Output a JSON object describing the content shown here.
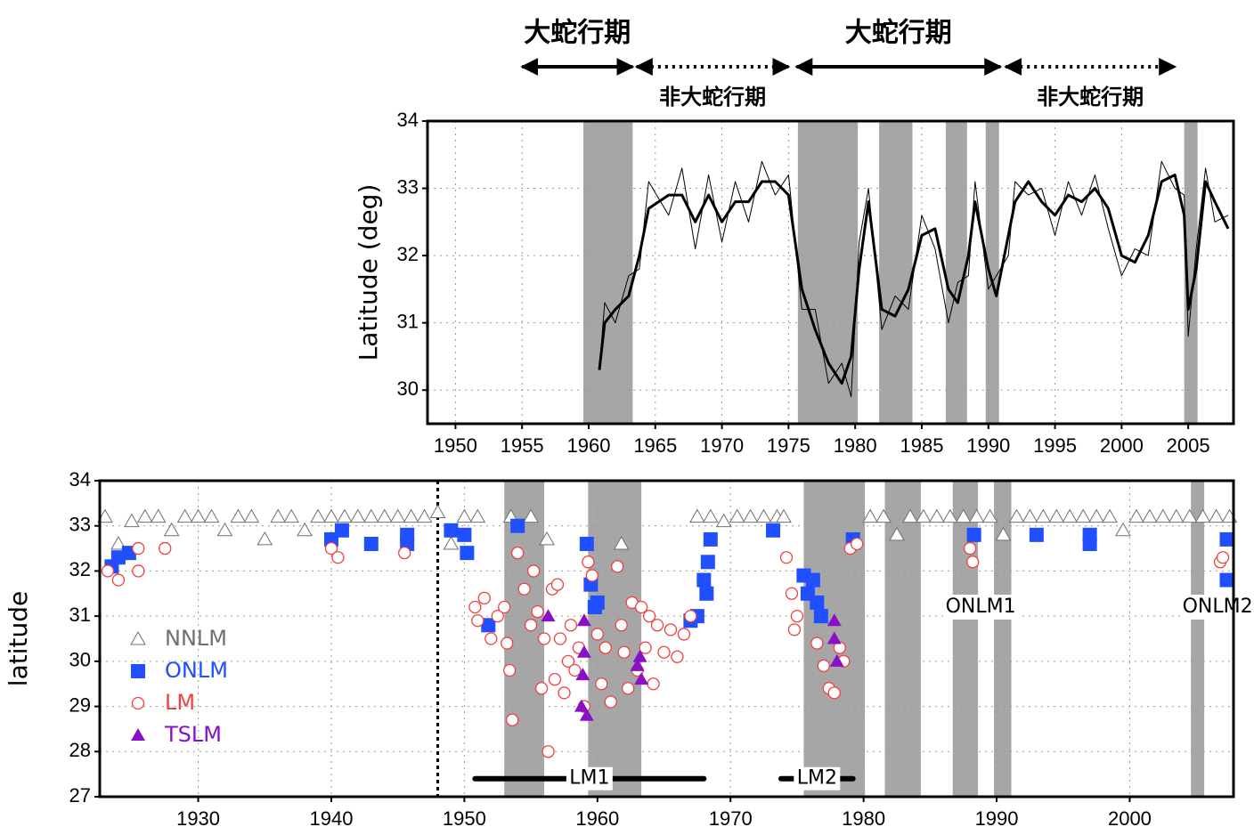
{
  "chart_data": [
    {
      "type": "line",
      "ylabel": "Latitude (deg)",
      "xlim": [
        1947.9,
        2008.4
      ],
      "ylim": [
        29.5,
        34
      ],
      "xticks": [
        1950,
        1955,
        1960,
        1965,
        1970,
        1975,
        1980,
        1985,
        1990,
        1995,
        2000,
        2005
      ],
      "yticks": [
        30,
        31,
        32,
        33,
        34
      ],
      "grid": true,
      "shading": [
        [
          1959.6,
          1963.3
        ],
        [
          1975.7,
          1980.2
        ],
        [
          1981.8,
          1984.3
        ],
        [
          1986.8,
          1988.4
        ],
        [
          1989.8,
          1990.8
        ],
        [
          2004.7,
          2005.7
        ]
      ],
      "shade_color": "#a6a6a6",
      "periods": [
        {
          "label": "大蛇行期",
          "start": 1955,
          "end": 1963.3,
          "style": "solid"
        },
        {
          "label": "非大蛇行期",
          "start": 1963.6,
          "end": 1975,
          "style": "dotted"
        },
        {
          "label": "大蛇行期",
          "start": 1975.6,
          "end": 1990.9,
          "style": "solid"
        },
        {
          "label": "非大蛇行期",
          "start": 1991.3,
          "end": 2004,
          "style": "dotted"
        }
      ],
      "series": [
        {
          "color": "#000000",
          "width": 1,
          "x": [
            1960.8,
            1961.2,
            1962,
            1963,
            1963.8,
            1964.5,
            1966,
            1967,
            1968,
            1969,
            1970,
            1971,
            1972,
            1973,
            1974,
            1975,
            1976,
            1977,
            1978,
            1979,
            1979.7,
            1980.3,
            1981,
            1982,
            1983,
            1984,
            1985,
            1986,
            1987,
            1987.7,
            1988.5,
            1989,
            1990,
            1990.6,
            1991.5,
            1992,
            1993,
            1994,
            1995,
            1996,
            1997,
            1998,
            1999,
            2000,
            2001,
            2002,
            2003,
            2004,
            2004.7,
            2005,
            2005.6,
            2006.3,
            2007,
            2008
          ],
          "values": [
            30.3,
            31.3,
            31.0,
            31.7,
            31.8,
            33.1,
            32.6,
            33.3,
            32.1,
            33.2,
            32.2,
            33.1,
            32.5,
            33.4,
            32.9,
            33.2,
            31.2,
            31.2,
            30.1,
            30.4,
            29.9,
            32.2,
            33.0,
            30.9,
            31.4,
            31.2,
            32.6,
            32.1,
            31.0,
            31.6,
            31.7,
            33.1,
            31.5,
            31.7,
            32.0,
            33.1,
            32.9,
            33.0,
            32.3,
            33.1,
            32.6,
            33.2,
            32.4,
            31.7,
            32.1,
            32.0,
            33.4,
            33.0,
            32.9,
            30.8,
            32.1,
            33.3,
            32.5,
            32.6
          ]
        },
        {
          "color": "#000000",
          "width": 3,
          "x": [
            1960.8,
            1961.2,
            1962,
            1963,
            1963.8,
            1964.5,
            1966,
            1967,
            1968,
            1969,
            1970,
            1971,
            1972,
            1973,
            1974,
            1975,
            1976,
            1977,
            1978,
            1979,
            1979.7,
            1980.3,
            1981,
            1982,
            1983,
            1984,
            1985,
            1986,
            1987,
            1987.7,
            1988.5,
            1989,
            1990,
            1990.6,
            1991.5,
            1992,
            1993,
            1994,
            1995,
            1996,
            1997,
            1998,
            1999,
            2000,
            2001,
            2002,
            2003,
            2004,
            2004.7,
            2005,
            2005.6,
            2006.3,
            2007,
            2008
          ],
          "values": [
            30.3,
            31.0,
            31.2,
            31.4,
            32.0,
            32.7,
            32.9,
            32.9,
            32.5,
            32.9,
            32.5,
            32.8,
            32.8,
            33.1,
            33.1,
            32.9,
            31.5,
            30.9,
            30.4,
            30.1,
            30.5,
            31.8,
            32.8,
            31.2,
            31.1,
            31.5,
            32.3,
            32.4,
            31.5,
            31.3,
            32.0,
            32.8,
            31.8,
            31.4,
            32.3,
            32.8,
            33.1,
            32.8,
            32.6,
            32.9,
            32.8,
            33.0,
            32.7,
            32.0,
            31.9,
            32.3,
            33.1,
            33.2,
            32.6,
            31.2,
            31.8,
            33.1,
            32.8,
            32.4
          ]
        }
      ]
    },
    {
      "type": "scatter",
      "ylabel": "latitude",
      "xlim": [
        1922.6,
        2007.8
      ],
      "ylim": [
        27,
        34
      ],
      "xticks": [
        1930,
        1940,
        1950,
        1960,
        1970,
        1980,
        1990,
        2000
      ],
      "yticks": [
        27,
        28,
        29,
        30,
        31,
        32,
        33,
        34
      ],
      "grid": true,
      "legend": "left",
      "shading": [
        [
          1953,
          1956
        ],
        [
          1959.3,
          1963.3
        ],
        [
          1975.5,
          1980.1
        ],
        [
          1981.6,
          1984.3
        ],
        [
          1986.7,
          1988.6
        ],
        [
          1989.8,
          1991.1
        ],
        [
          2004.6,
          2005.6
        ]
      ],
      "shade_color": "#a6a6a6",
      "vlines": [
        1948
      ],
      "annotations": [
        {
          "text": "ONLM1",
          "x": 1988.8,
          "y": 31.2
        },
        {
          "text": "ONLM2",
          "x": 2006.6,
          "y": 31.2
        }
      ],
      "ranges": [
        {
          "label": "LM1",
          "start": 1950.8,
          "end": 1968,
          "y": 27.4
        },
        {
          "label": "LM2",
          "start": 1973.8,
          "end": 1979.2,
          "y": 27.4
        }
      ],
      "series": [
        {
          "name": "NNLM",
          "color": "#707070",
          "marker": "triangle-open",
          "x": [
            1923,
            1924,
            1925,
            1926,
            1927,
            1928,
            1929,
            1930,
            1931,
            1932,
            1933,
            1934,
            1935,
            1936,
            1937,
            1938,
            1939,
            1940,
            1941,
            1942,
            1943,
            1944,
            1945,
            1946,
            1947,
            1948,
            1949,
            1950,
            1951,
            1953.5,
            1955,
            1956.2,
            1961.8,
            1967.5,
            1968.5,
            1969.5,
            1970.5,
            1971.5,
            1972.5,
            1973.5,
            1974,
            1980.5,
            1981.5,
            1982.5,
            1983.5,
            1984.5,
            1985.5,
            1986.5,
            1987.5,
            1988.5,
            1989.5,
            1990.5,
            1991.5,
            1992.5,
            1993.5,
            1994.5,
            1995.5,
            1996.5,
            1997.5,
            1998.5,
            1999.5,
            2000.5,
            2001.5,
            2002.5,
            2003.5,
            2004.5,
            2005.5,
            2006.5,
            2007.5
          ],
          "values": [
            33.2,
            32.6,
            33.1,
            33.2,
            33.2,
            32.9,
            33.2,
            33.2,
            33.2,
            32.9,
            33.2,
            33.2,
            32.7,
            33.2,
            33.2,
            32.9,
            33.2,
            33.2,
            33.2,
            33.2,
            33.2,
            33.2,
            33.2,
            33.2,
            33.2,
            33.3,
            32.6,
            33.2,
            33.2,
            33.2,
            33.2,
            32.7,
            32.6,
            33.2,
            33.2,
            33.1,
            33.2,
            33.2,
            33.2,
            33.2,
            33.2,
            33.2,
            33.2,
            32.8,
            33.2,
            33.2,
            33.2,
            33.2,
            33.2,
            33.2,
            33.2,
            32.8,
            33.2,
            33.2,
            33.2,
            33.2,
            33.2,
            33.2,
            33.2,
            33.2,
            32.9,
            33.2,
            33.2,
            33.2,
            33.2,
            33.2,
            33.2,
            33.2,
            33.2
          ]
        },
        {
          "name": "ONLM",
          "color": "#1f4fff",
          "marker": "square",
          "x": [
            1923.5,
            1924,
            1924.8,
            1940,
            1940.8,
            1943,
            1945.7,
            1945.7,
            1949,
            1950,
            1950.2,
            1951.8,
            1954,
            1959.2,
            1959.5,
            1959.8,
            1960,
            1967,
            1967.5,
            1968,
            1968.2,
            1968.3,
            1968.5,
            1973.2,
            1975.5,
            1975.8,
            1976.2,
            1976.5,
            1976.8,
            1979.2,
            1988.3,
            1993,
            1997,
            1997,
            2007.3,
            2007.3
          ],
          "values": [
            32.1,
            32.3,
            32.4,
            32.7,
            32.9,
            32.6,
            32.8,
            32.6,
            32.9,
            32.8,
            32.4,
            30.8,
            33.0,
            32.6,
            31.7,
            31.2,
            31.3,
            30.9,
            31.0,
            31.8,
            31.5,
            32.2,
            32.7,
            32.9,
            31.9,
            31.5,
            31.8,
            31.3,
            31.0,
            32.7,
            32.8,
            32.8,
            32.8,
            32.6,
            32.7,
            31.8
          ]
        },
        {
          "name": "LM",
          "color": "#f04040",
          "marker": "circle-open",
          "x": [
            1923.2,
            1924,
            1925.5,
            1925.5,
            1927.5,
            1940,
            1940.5,
            1945.5,
            1950.8,
            1951,
            1951.5,
            1952,
            1952.5,
            1953,
            1953.2,
            1953.4,
            1953.6,
            1954,
            1954.5,
            1955,
            1955.2,
            1955.5,
            1955.8,
            1956,
            1956.3,
            1956.6,
            1956.8,
            1957,
            1957.2,
            1957.5,
            1957.8,
            1958,
            1958.3,
            1958.6,
            1959,
            1959.3,
            1959.6,
            1960,
            1960.3,
            1960.6,
            1961,
            1961.5,
            1961.8,
            1962,
            1962.3,
            1962.6,
            1963,
            1963.3,
            1963.6,
            1963.9,
            1964.2,
            1964.5,
            1965,
            1965.5,
            1966,
            1966.5,
            1967,
            1974.2,
            1974.6,
            1974.8,
            1975,
            1976.5,
            1977,
            1977.4,
            1977.8,
            1978.2,
            1978.5,
            1979,
            1979.5,
            1988,
            1988.2,
            2006.8,
            2007
          ],
          "values": [
            32.0,
            31.8,
            32.0,
            32.5,
            32.5,
            32.5,
            32.3,
            32.4,
            31.2,
            30.9,
            31.4,
            30.5,
            31.0,
            31.2,
            30.4,
            29.8,
            28.7,
            32.4,
            31.6,
            30.8,
            32.0,
            31.1,
            29.4,
            30.5,
            28.0,
            31.6,
            29.6,
            31.7,
            30.5,
            29.3,
            30.0,
            30.8,
            29.8,
            30.3,
            29.0,
            32.2,
            31.9,
            30.6,
            29.5,
            30.3,
            29.1,
            32.1,
            30.8,
            30.2,
            29.4,
            31.3,
            29.8,
            31.2,
            30.3,
            31.0,
            29.5,
            30.8,
            30.2,
            30.7,
            30.1,
            30.6,
            31.0,
            32.3,
            31.5,
            30.7,
            31.0,
            30.4,
            29.9,
            29.4,
            29.3,
            30.3,
            30.0,
            32.5,
            32.6,
            32.5,
            32.2,
            32.2,
            32.3
          ]
        },
        {
          "name": "TSLM",
          "color": "#8a10c8",
          "marker": "triangle",
          "x": [
            1956.3,
            1959,
            1959,
            1958.9,
            1958.8,
            1959.2,
            1963.2,
            1963.3,
            1963,
            1977.8,
            1977.8,
            1978
          ],
          "values": [
            31.0,
            30.9,
            30.2,
            29.7,
            29.0,
            28.8,
            30.1,
            29.6,
            29.9,
            30.9,
            30.5,
            30.0
          ]
        }
      ]
    }
  ]
}
